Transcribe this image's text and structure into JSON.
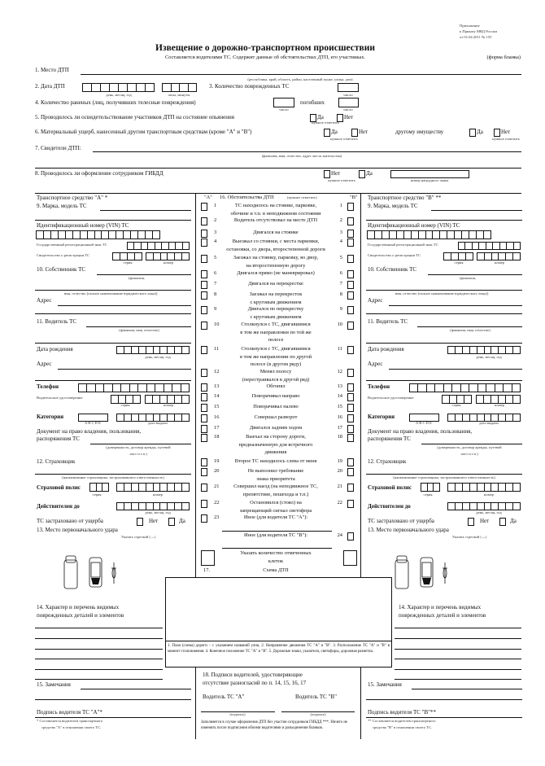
{
  "header": {
    "appendix": [
      "Приложение",
      "к Приказу МВД России",
      "от 01.04.2011 № 155"
    ],
    "title": "Извещение о дорожно-транспортном происшествии",
    "subtitle": "Составляется водителями ТС. Содержит данные об обстоятельствах ДТП, его участниках.",
    "form_label": "(форма бланка)"
  },
  "general": {
    "place_label": "1. Место ДТП",
    "place_caption": "(республика, край, область, район, населенный пункт, улица, дом)",
    "date_label": "2. Дата ДТП",
    "date_caption": "день, месяц, год",
    "time_caption": "часы, минуты",
    "damaged_label": "3. Количество поврежденных ТС",
    "number_caption": "число",
    "injured_label": "4. Количество раненых (лиц, получивших телесные повреждения)",
    "killed_label": "погибших",
    "intox_label": "5. Проводилось ли освидетельствование участников ДТП на состояние опьянения",
    "yes": "Да",
    "no": "Нет",
    "mark_caption": "нужное отметить",
    "material_label": "6. Материальный ущерб, нанесенный другим транспортным средствам (кроме \"А\" и \"В\")",
    "other_property_label": "другому имуществу",
    "witnesses_label": "7. Свидетели ДТП:",
    "witnesses_caption": "(фамилия, имя, отчество, адрес места жительства)",
    "gibdd_label": "8. Проводилось ли оформление сотрудником ГИБДД",
    "badge_caption": "номер нагрудного знака"
  },
  "vehicle_labels": {
    "make": "9. Марка, модель ТС",
    "vin": "Идентификационный номер (VIN) ТС",
    "reg_plate": "Государственный регистрационный знак ТС",
    "reg_cert": "Свидетельство о регистрации ТС",
    "series": "серия",
    "number": "номер",
    "owner": "10. Собственник ТС",
    "owner_caption_1": "(фамилия,",
    "owner_caption_2": "имя, отчество (полное наименование юридического лица))",
    "address": "Адрес",
    "driver": "11. Водитель ТС",
    "driver_caption": "(фамилия, имя, отчество)",
    "birth": "Дата рождения",
    "date_caption": "день, месяц, год",
    "phone": "Телефон",
    "license": "Водительское удостоверение",
    "category": "Категория",
    "category_letters": "A B C D E",
    "issue_caption": "дата выдачи",
    "doc_1": "Документ на право владения, пользования,",
    "doc_2": "распоряжения ТС",
    "doc_caption_1": "(доверенность, договор аренды, путевой",
    "doc_caption_2": "лист и т.п.)",
    "insurer": "12. Страховщик",
    "insurer_caption": "(наименование страховщика, застраховавшего ответственность)",
    "policy": "Страховой полис",
    "valid_until": "Действителен до",
    "insured": "ТС застраховано от ущерба",
    "no": "Нет",
    "yes": "Да",
    "impact": "13. Место первоначального удара",
    "arrow_hint": "Указать стрелкой (→)",
    "damage_1": "14. Характер и перечень видимых",
    "damage_2": "поврежденных деталей и элементов",
    "remarks": "15. Замечания"
  },
  "vehicles": [
    {
      "title": "Транспортное средство \"А\" *",
      "signature": "Подпись водителя ТС \"А\"*",
      "footnote_1": "* Составляется водителем транспортного",
      "footnote_2": "средства \"А\" в отношении своего ТС."
    },
    {
      "title": "Транспортное средство \"В\" **",
      "signature": "Подпись водителя ТС \"В\"**",
      "footnote_1": "** Составляется водителем транспортного",
      "footnote_2": "средства \"В\" в отношении своего ТС."
    }
  ],
  "circumstances": {
    "col_a": "\"А\"",
    "col_b": "\"В\"",
    "title": "16. Обстоятельства ДТП",
    "title_note": "(нужное отметить)",
    "items": [
      {
        "n": "1",
        "sides": "both",
        "lines": [
          "ТС находилось на стоянке, парковке,",
          "обочине и т.п. в неподвижном состоянии"
        ]
      },
      {
        "n": "2",
        "sides": "both",
        "lines": [
          "Водитель отсутствовал на месте ДТП"
        ]
      },
      {
        "n": "3",
        "sides": "both",
        "lines": [
          "Двигался на стоянке"
        ]
      },
      {
        "n": "4",
        "sides": "both",
        "lines": [
          "Выезжал со стоянки, с места парковки,",
          "остановки, со двора, второстепенной дороги"
        ]
      },
      {
        "n": "5",
        "sides": "both",
        "lines": [
          "Заезжал на стоянку, парковку, во двор,",
          "на второстепенную дорогу"
        ]
      },
      {
        "n": "6",
        "sides": "both",
        "lines": [
          "Двигался прямо (не маневрировал)"
        ]
      },
      {
        "n": "7",
        "sides": "both",
        "lines": [
          "Двигался на перекрестке"
        ]
      },
      {
        "n": "8",
        "sides": "both",
        "lines": [
          "Заезжал на перекресток",
          "с круговым движением"
        ]
      },
      {
        "n": "9",
        "sides": "both",
        "lines": [
          "Двигался по перекрестку",
          "с круговым движением"
        ]
      },
      {
        "n": "10",
        "sides": "both",
        "lines": [
          "Столкнулся с ТС, двигавшимся",
          "в том же направлении по той же",
          "полосе"
        ]
      },
      {
        "n": "11",
        "sides": "both",
        "lines": [
          "Столкнулся с ТС, двигавшимся",
          "в том же направлении по другой",
          "полосе (в другом ряду)"
        ]
      },
      {
        "n": "12",
        "sides": "both",
        "lines": [
          "Менял полосу",
          "(перестраивался в другой ряд)"
        ]
      },
      {
        "n": "13",
        "sides": "both",
        "lines": [
          "Обгонял"
        ]
      },
      {
        "n": "14",
        "sides": "both",
        "lines": [
          "Поворачивал направо"
        ]
      },
      {
        "n": "15",
        "sides": "both",
        "lines": [
          "Поворачивал налево"
        ]
      },
      {
        "n": "16",
        "sides": "both",
        "lines": [
          "Совершал разворот"
        ]
      },
      {
        "n": "17",
        "sides": "both",
        "lines": [
          "Двигался задним ходом"
        ]
      },
      {
        "n": "18",
        "sides": "both",
        "lines": [
          "Выехал на сторону дороги,",
          "предназначенную для встречного",
          "движения"
        ]
      },
      {
        "n": "19",
        "sides": "both",
        "lines": [
          "Второе ТС находилось слева от меня"
        ]
      },
      {
        "n": "20",
        "sides": "both",
        "lines": [
          "Не выполнил требование",
          "знака приоритета"
        ]
      },
      {
        "n": "21",
        "sides": "both",
        "lines": [
          "Совершил наезд (на неподвижное ТС,",
          "препятствие, пешехода и т.п.)"
        ]
      },
      {
        "n": "22",
        "sides": "both",
        "lines": [
          "Остановился (стоял) на",
          "запрещающий сигнал светофора"
        ]
      },
      {
        "n": "23",
        "sides": "a",
        "lines": [
          "Иное (для водителя ТС \"А\"):"
        ]
      },
      {
        "n": "24",
        "sides": "b",
        "lines": [
          "Иное (для водителя ТС \"В\"):"
        ]
      }
    ],
    "count_label": [
      "Указать количество отмеченных",
      "клеток"
    ]
  },
  "scheme": {
    "number": "17.",
    "title": "Схема ДТП",
    "legend": "1. План (схема) дороги – с указанием названий улиц.      2. Направление движения ТС \"А\" и \"В\".      3. Расположение ТС \"А\" и \"В\" в момент столкновения.      4. Конечное положение ТС \"А\" и \"В\".      5. Дорожные знаки, указатели, светофоры, дорожная разметка."
  },
  "signatures": {
    "title_1": "18. Подписи водителей, удостоверяющие",
    "title_2": "отсутствие разногласий по п. 14, 15, 16, 17",
    "driver_a": "Водитель ТС \"А\"",
    "driver_b": "Водитель ТС \"В\"",
    "sign_caption": "(подпись)",
    "note": "Заполняется в случае оформления ДТП без участия сотрудников ГИБДД ***. Ничего не изменять после подписания обоими водителями и разъединения бланков."
  }
}
